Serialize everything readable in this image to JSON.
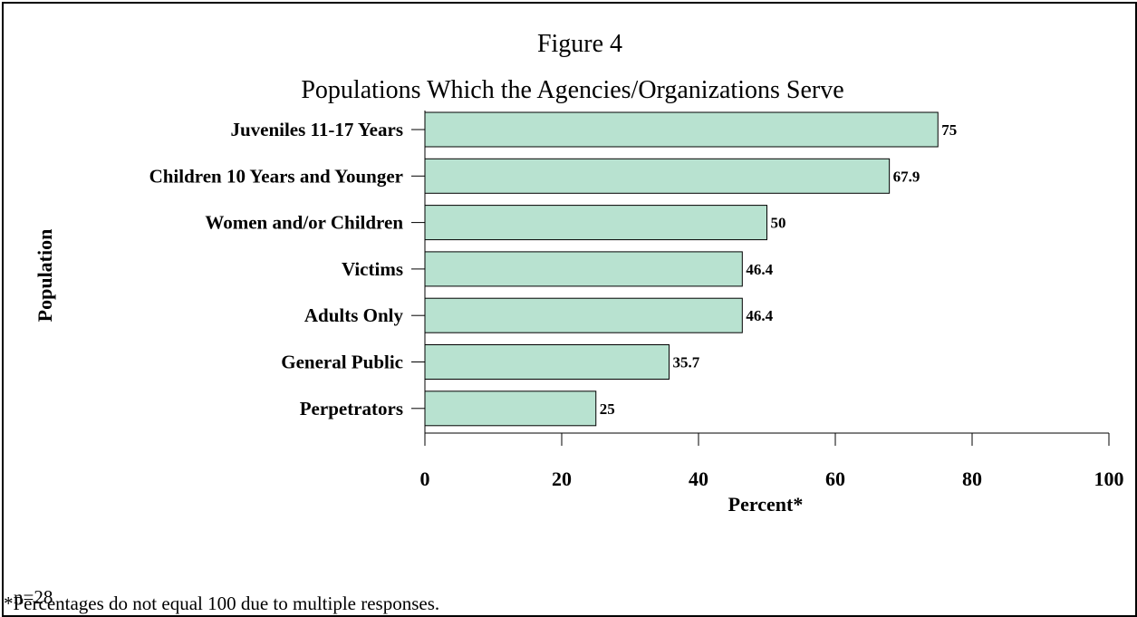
{
  "colors": {
    "bar_fill": "#b8e2d0",
    "bar_stroke": "#000000",
    "axis": "#000000"
  },
  "chart_data": {
    "type": "bar",
    "orientation": "horizontal",
    "title": "Figure 4",
    "subtitle": "Populations Which the Agencies/Organizations Serve",
    "ylabel": "Population",
    "xlabel": "Percent*",
    "categories": [
      "Juveniles 11-17 Years",
      "Children 10 Years and Younger",
      "Women and/or Children",
      "Victims",
      "Adults Only",
      "General Public",
      "Perpetrators"
    ],
    "values": [
      75,
      67.9,
      50,
      46.4,
      46.4,
      35.7,
      25
    ],
    "value_labels": [
      "75",
      "67.9",
      "50",
      "46.4",
      "46.4",
      "35.7",
      "25"
    ],
    "xlim": [
      0,
      100
    ],
    "xticks": [
      0,
      20,
      40,
      60,
      80,
      100
    ],
    "grid": false,
    "legend": "none"
  },
  "notes": {
    "sample_size": "n=28",
    "footnote": "*Percentages do not equal 100 due to multiple responses."
  }
}
